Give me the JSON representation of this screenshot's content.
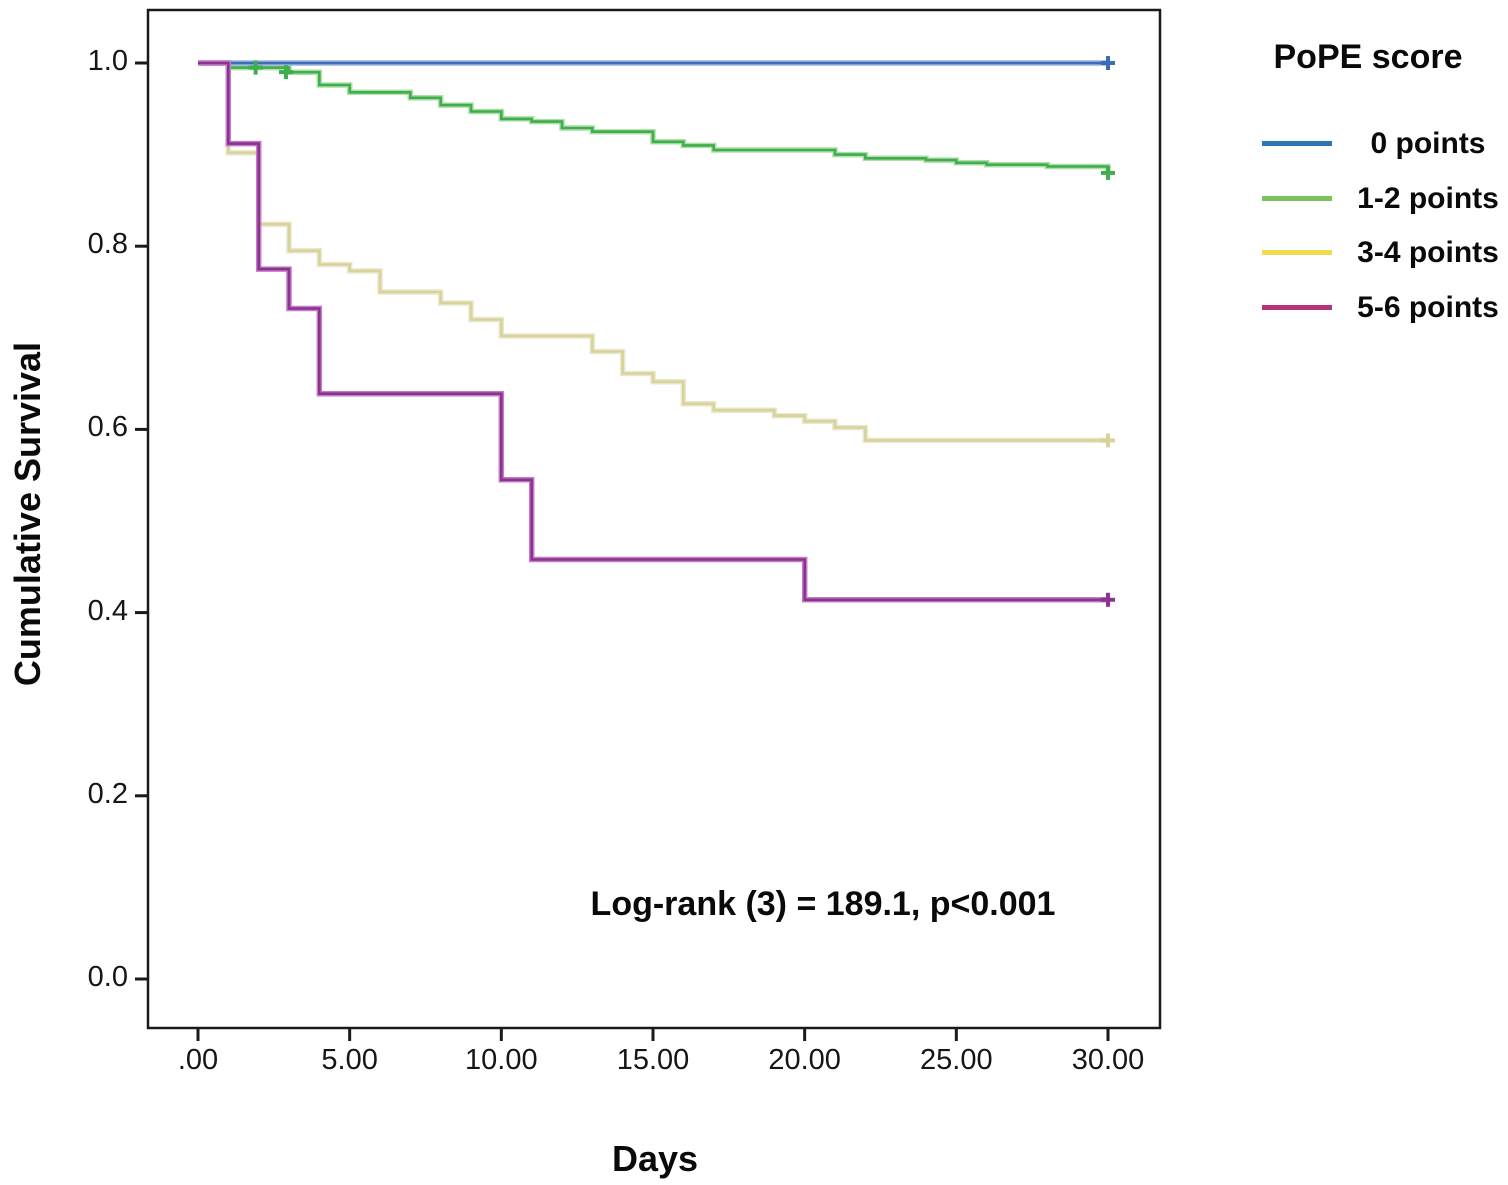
{
  "figure": {
    "ylabel": "Cumulative Survival",
    "xlabel": "Days",
    "annotation": "Log-rank (3) = 189.1, p<0.001",
    "legend_title": "PoPE score"
  },
  "chart_data": {
    "type": "line",
    "subtype": "kaplan-meier-step",
    "title": "",
    "xlabel": "Days",
    "ylabel": "Cumulative Survival",
    "grid": false,
    "legend_position": "right",
    "legend_title": "PoPE score",
    "annotation": "Log-rank (3) = 189.1, p<0.001",
    "xlim": [
      -1.65,
      31.7
    ],
    "ylim": [
      -0.053,
      1.058
    ],
    "x_tick_labels": [
      ".00",
      "5.00",
      "10.00",
      "15.00",
      "20.00",
      "25.00",
      "30.00"
    ],
    "x_tick_values": [
      0,
      5,
      10,
      15,
      20,
      25,
      30
    ],
    "y_tick_labels": [
      "1.0",
      "0.8",
      "0.6",
      "0.4",
      "0.2",
      "0.0"
    ],
    "y_tick_values": [
      1.0,
      0.8,
      0.6,
      0.4,
      0.2,
      0.0
    ],
    "series": [
      {
        "name": "0 points",
        "color": "#3a6cb7",
        "halo": "#9fb3dd",
        "legend_color": "#2e75b6",
        "steps": [
          [
            0,
            1.0
          ],
          [
            30,
            1.0
          ]
        ],
        "censors": [
          [
            30,
            1.0
          ]
        ]
      },
      {
        "name": "1-2 points",
        "color": "#3fae4e",
        "halo": "#aedfa6",
        "legend_color": "#7cc35c",
        "steps": [
          [
            0,
            1.0
          ],
          [
            1,
            0.995
          ],
          [
            3,
            0.99
          ],
          [
            4,
            0.976
          ],
          [
            5,
            0.968
          ],
          [
            7,
            0.962
          ],
          [
            8,
            0.954
          ],
          [
            9,
            0.947
          ],
          [
            10,
            0.939
          ],
          [
            11,
            0.936
          ],
          [
            12,
            0.929
          ],
          [
            13,
            0.925
          ],
          [
            15,
            0.914
          ],
          [
            16,
            0.91
          ],
          [
            17,
            0.905
          ],
          [
            21,
            0.9
          ],
          [
            22,
            0.896
          ],
          [
            24,
            0.894
          ],
          [
            25,
            0.891
          ],
          [
            26,
            0.889
          ],
          [
            28,
            0.887
          ],
          [
            30,
            0.88
          ]
        ],
        "censors": [
          [
            1.9,
            0.995
          ],
          [
            2.9,
            0.99
          ],
          [
            30,
            0.88
          ]
        ]
      },
      {
        "name": "3-4 points",
        "color": "#d8d39c",
        "halo": "#eae7ca",
        "legend_color": "#f1db4f",
        "steps": [
          [
            0,
            1.0
          ],
          [
            1,
            0.902
          ],
          [
            2,
            0.824
          ],
          [
            3,
            0.795
          ],
          [
            4,
            0.78
          ],
          [
            5,
            0.773
          ],
          [
            6,
            0.75
          ],
          [
            8,
            0.738
          ],
          [
            9,
            0.72
          ],
          [
            10,
            0.702
          ],
          [
            13,
            0.685
          ],
          [
            14,
            0.661
          ],
          [
            15,
            0.652
          ],
          [
            16,
            0.628
          ],
          [
            17,
            0.621
          ],
          [
            19,
            0.615
          ],
          [
            20,
            0.609
          ],
          [
            21,
            0.602
          ],
          [
            22,
            0.588
          ],
          [
            30,
            0.588
          ]
        ],
        "censors": [
          [
            30,
            0.588
          ]
        ]
      },
      {
        "name": "5-6 points",
        "color": "#8c3390",
        "halo": "#c27cc6",
        "legend_color": "#b2347a",
        "steps": [
          [
            0,
            1.0
          ],
          [
            1,
            0.912
          ],
          [
            2,
            0.775
          ],
          [
            3,
            0.732
          ],
          [
            4,
            0.639
          ],
          [
            10,
            0.545
          ],
          [
            11,
            0.458
          ],
          [
            20,
            0.414
          ],
          [
            30,
            0.414
          ]
        ],
        "censors": [
          [
            30,
            0.414
          ]
        ]
      }
    ]
  }
}
